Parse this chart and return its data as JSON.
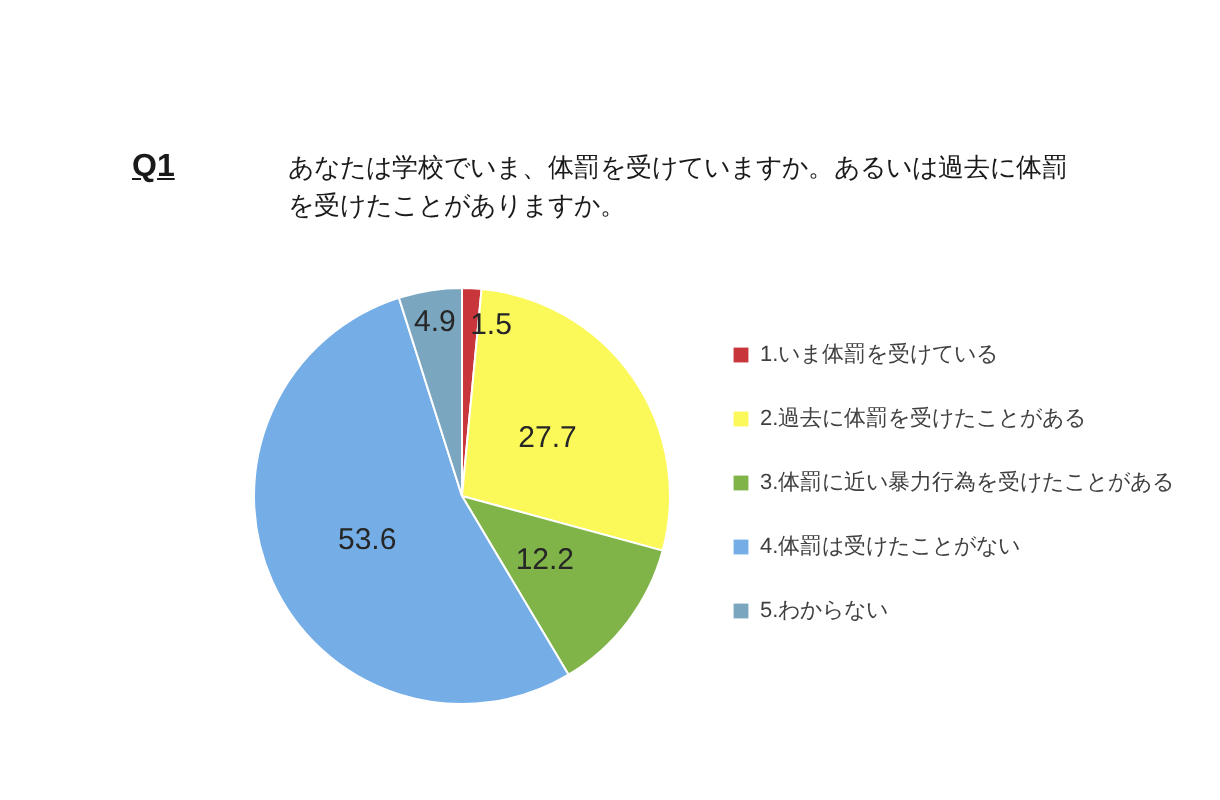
{
  "chart_data": {
    "type": "pie",
    "title": "Q1 あなたは学校でいま、体罰を受けていますか。あるいは過去に体罰を受けたことがありますか。",
    "categories": [
      "1.いま体罰を受けている",
      "2.過去に体罰を受けたことがある",
      "3.体罰に近い暴力行為を受けたことがある",
      "4.体罰は受けたことがない",
      "5.わからない"
    ],
    "values": [
      1.5,
      27.7,
      12.2,
      53.6,
      4.9
    ],
    "colors": [
      "#c8353a",
      "#fbf85a",
      "#80b449",
      "#75aee6",
      "#7ba6c0"
    ],
    "data_labels": true,
    "legend": "right"
  }
}
